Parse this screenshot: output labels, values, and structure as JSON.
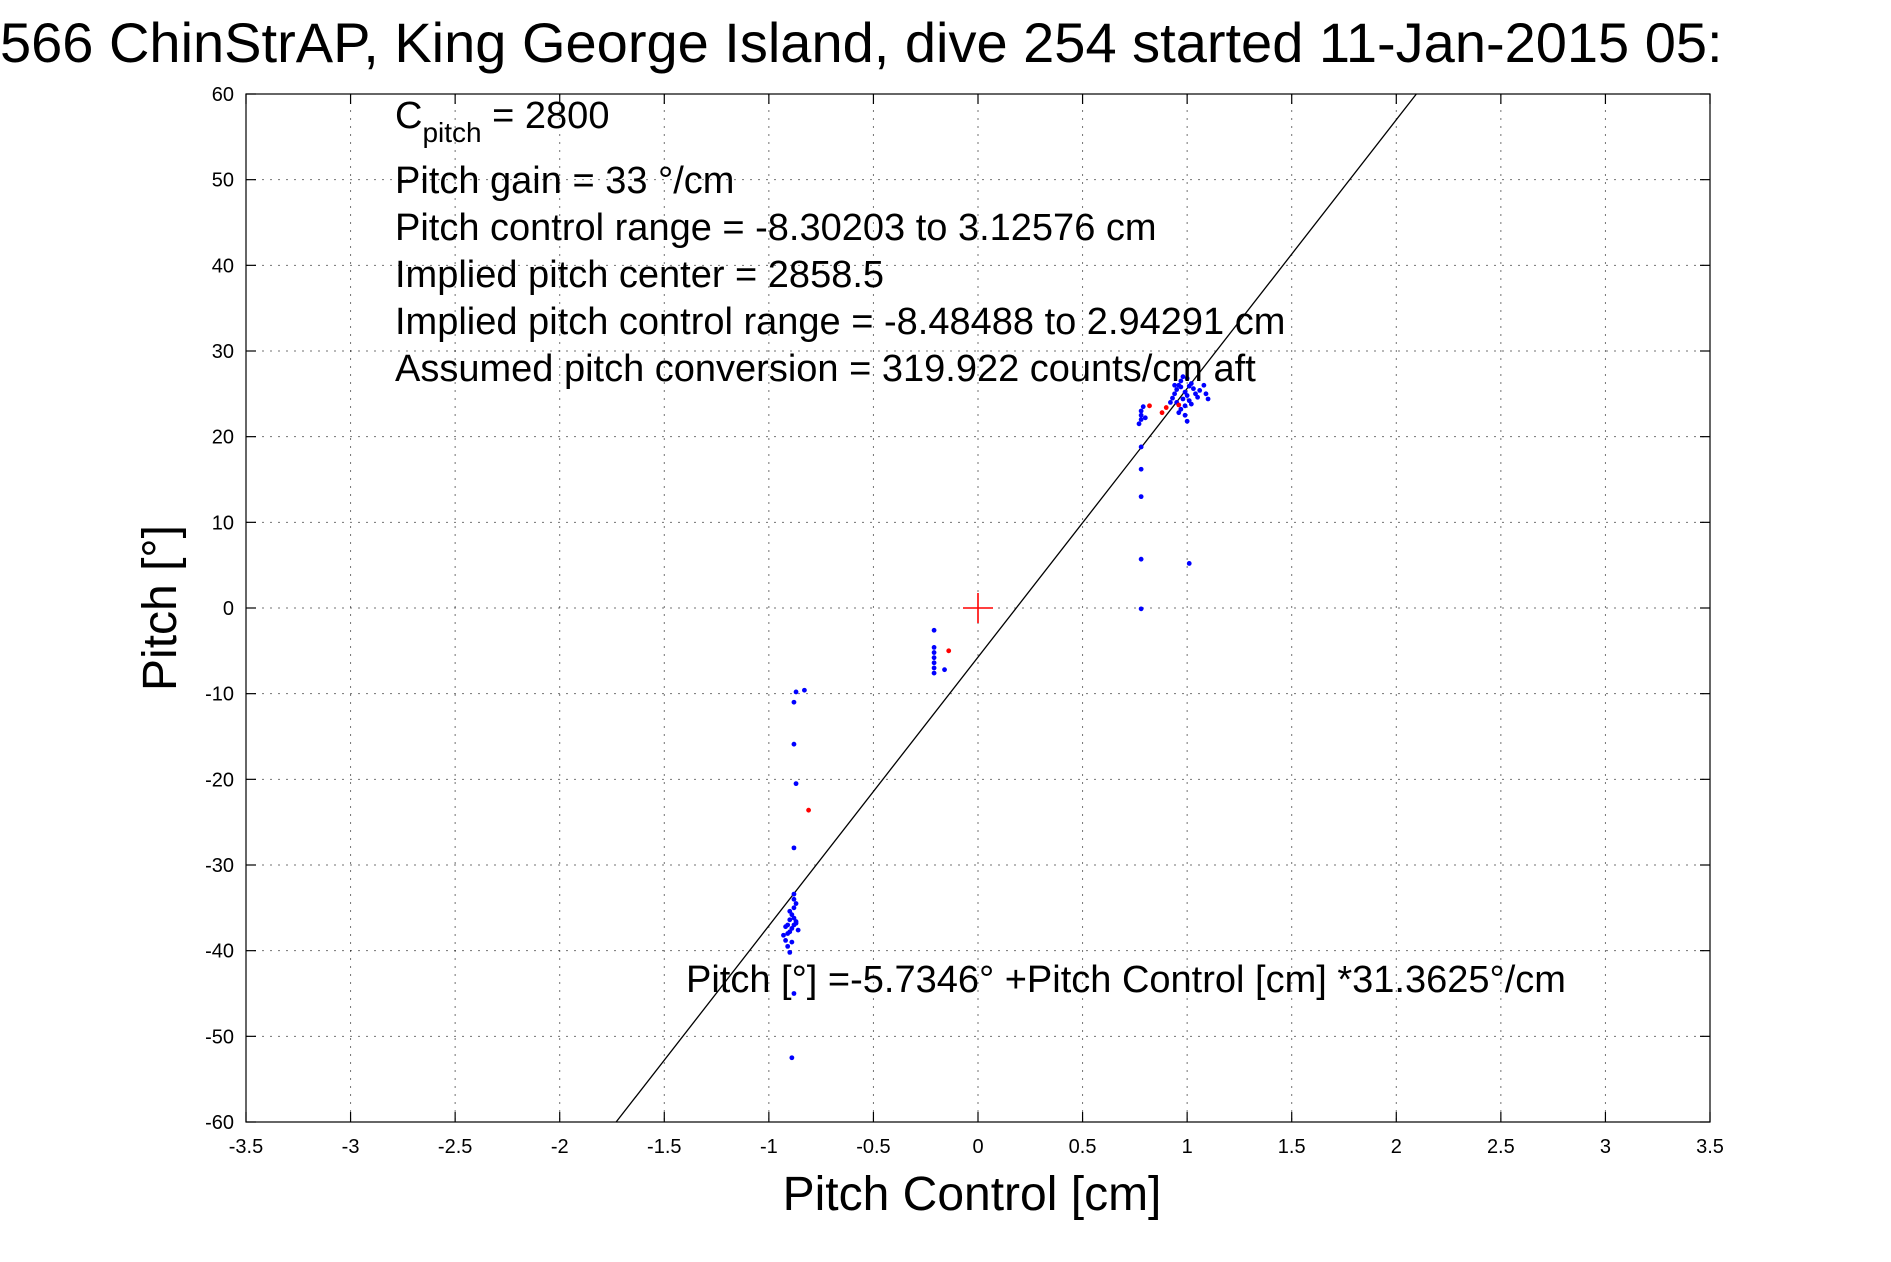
{
  "chart_data": {
    "type": "scatter",
    "title": "566 ChinStrAP, King George Island, dive 254 started 11-Jan-2015 05:",
    "xlabel": "Pitch Control [cm]",
    "ylabel": "Pitch [°]",
    "xlim": [
      -3.5,
      3.5
    ],
    "ylim": [
      -60,
      60
    ],
    "xticks": [
      -3.5,
      -3,
      -2.5,
      -2,
      -1.5,
      -1,
      -0.5,
      0,
      0.5,
      1,
      1.5,
      2,
      2.5,
      3,
      3.5
    ],
    "yticks": [
      -60,
      -50,
      -40,
      -30,
      -20,
      -10,
      0,
      10,
      20,
      30,
      40,
      50,
      60
    ],
    "xtick_labels": [
      "-3.5",
      "-3",
      "-2.5",
      "-2",
      "-1.5",
      "-1",
      "-0.5",
      "0",
      "0.5",
      "1",
      "1.5",
      "2",
      "2.5",
      "3",
      "3.5"
    ],
    "ytick_labels": [
      "-60",
      "-50",
      "-40",
      "-30",
      "-20",
      "-10",
      "0",
      "10",
      "20",
      "30",
      "40",
      "50",
      "60"
    ],
    "grid": true,
    "fit_line": {
      "intercept": -5.7346,
      "slope": 31.3625
    },
    "center_marker": {
      "x": 0,
      "y": 0,
      "color": "#ff0000"
    },
    "annotations": {
      "cpitch_main": "C",
      "cpitch_sub": "pitch",
      "cpitch_value": " = 2800",
      "pitch_gain": "Pitch gain = 33 °/cm",
      "control_range": "Pitch control range = -8.30203 to 3.12576 cm",
      "implied_center": "Implied pitch center = 2858.5",
      "implied_range": "Implied pitch control range = -8.48488 to 2.94291 cm",
      "conversion": "Assumed pitch conversion = 319.922 counts/cm aft",
      "fit_equation": "Pitch [°] =-5.7346° +Pitch Control [cm] *31.3625°/cm"
    },
    "series": [
      {
        "color": "#0000ff",
        "points": [
          [
            -0.89,
            -52.5
          ],
          [
            -0.88,
            -45.0
          ],
          [
            -0.9,
            -40.2
          ],
          [
            -0.91,
            -39.5
          ],
          [
            -0.92,
            -38.8
          ],
          [
            -0.93,
            -38.2
          ],
          [
            -0.9,
            -37.8
          ],
          [
            -0.89,
            -37.4
          ],
          [
            -0.88,
            -37.0
          ],
          [
            -0.87,
            -36.6
          ],
          [
            -0.88,
            -36.2
          ],
          [
            -0.89,
            -35.8
          ],
          [
            -0.9,
            -35.4
          ],
          [
            -0.88,
            -35.0
          ],
          [
            -0.87,
            -34.5
          ],
          [
            -0.88,
            -34.0
          ],
          [
            -0.88,
            -33.4
          ],
          [
            -0.92,
            -37.2
          ],
          [
            -0.91,
            -38.0
          ],
          [
            -0.87,
            -36.8
          ],
          [
            -0.86,
            -37.6
          ],
          [
            -0.89,
            -39.0
          ],
          [
            -0.9,
            -36.4
          ],
          [
            -0.91,
            -37.0
          ],
          [
            -0.88,
            -28.0
          ],
          [
            -0.87,
            -20.5
          ],
          [
            -0.88,
            -15.9
          ],
          [
            -0.88,
            -11.0
          ],
          [
            -0.87,
            -9.8
          ],
          [
            -0.83,
            -9.6
          ],
          [
            -0.21,
            -2.6
          ],
          [
            -0.21,
            -4.6
          ],
          [
            -0.21,
            -5.2
          ],
          [
            -0.21,
            -5.8
          ],
          [
            -0.21,
            -6.4
          ],
          [
            -0.21,
            -7.0
          ],
          [
            -0.21,
            -7.6
          ],
          [
            -0.16,
            -7.2
          ],
          [
            0.78,
            -0.1
          ],
          [
            0.78,
            5.7
          ],
          [
            0.78,
            13.0
          ],
          [
            0.78,
            16.2
          ],
          [
            0.78,
            18.8
          ],
          [
            0.77,
            21.5
          ],
          [
            0.78,
            22.0
          ],
          [
            0.78,
            22.5
          ],
          [
            0.78,
            23.0
          ],
          [
            0.79,
            23.5
          ],
          [
            0.8,
            22.2
          ],
          [
            1.01,
            5.2
          ],
          [
            0.92,
            24.0
          ],
          [
            0.93,
            24.5
          ],
          [
            0.94,
            25.0
          ],
          [
            0.95,
            25.5
          ],
          [
            0.96,
            26.0
          ],
          [
            0.97,
            26.5
          ],
          [
            0.98,
            27.0
          ],
          [
            0.99,
            25.2
          ],
          [
            1.0,
            24.8
          ],
          [
            1.01,
            24.2
          ],
          [
            1.02,
            23.8
          ],
          [
            1.03,
            25.6
          ],
          [
            0.97,
            23.2
          ],
          [
            0.96,
            22.8
          ],
          [
            0.99,
            22.5
          ],
          [
            1.0,
            21.8
          ],
          [
            0.95,
            24.0
          ],
          [
            0.98,
            24.4
          ],
          [
            1.02,
            26.2
          ],
          [
            1.04,
            25.0
          ],
          [
            1.0,
            26.8
          ],
          [
            0.94,
            26.0
          ],
          [
            0.97,
            25.8
          ],
          [
            0.99,
            23.6
          ],
          [
            1.01,
            25.9
          ],
          [
            1.05,
            24.6
          ],
          [
            1.06,
            25.4
          ],
          [
            1.09,
            25.0
          ],
          [
            1.1,
            24.4
          ],
          [
            1.08,
            26.0
          ]
        ]
      },
      {
        "color": "#ff0000",
        "points": [
          [
            -0.81,
            -23.6
          ],
          [
            -0.14,
            -5.0
          ],
          [
            0.82,
            23.6
          ],
          [
            0.9,
            23.4
          ],
          [
            0.96,
            23.7
          ],
          [
            0.88,
            22.8
          ]
        ]
      }
    ]
  }
}
